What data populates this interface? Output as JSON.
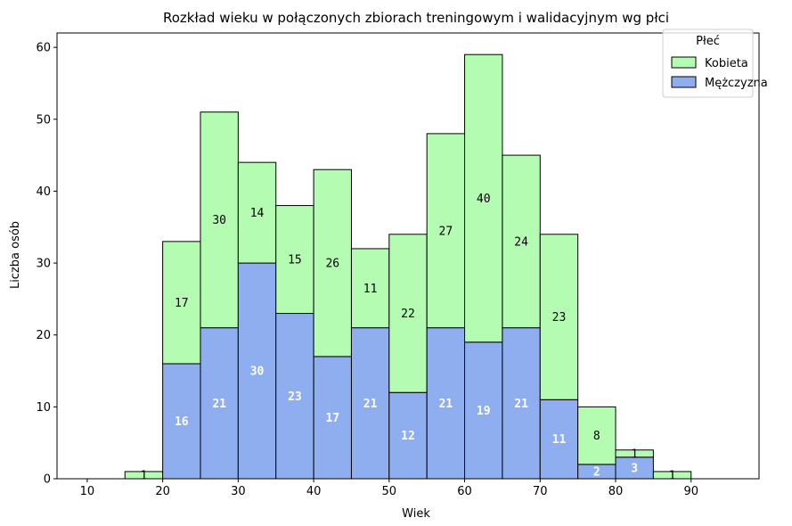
{
  "chart_data": {
    "type": "bar",
    "stacked": true,
    "title": "Rozkład wieku w połączonych zbiorach treningowym i walidacyjnym wg płci",
    "xlabel": "Wiek",
    "ylabel": "Liczba osób",
    "xlim": [
      6,
      99
    ],
    "ylim": [
      0,
      62
    ],
    "xticks": [
      10,
      20,
      30,
      40,
      50,
      60,
      70,
      80,
      90
    ],
    "yticks": [
      0,
      10,
      20,
      30,
      40,
      50,
      60
    ],
    "bin_edges": [
      10,
      15,
      20,
      25,
      30,
      35,
      40,
      45,
      50,
      55,
      60,
      65,
      70,
      75,
      80,
      85,
      90,
      95
    ],
    "series": [
      {
        "name": "Mężczyzna",
        "color": "#8eaef0",
        "values": [
          0,
          0,
          16,
          21,
          30,
          23,
          17,
          21,
          12,
          21,
          19,
          21,
          11,
          2,
          3,
          0,
          0
        ],
        "labels": [
          "",
          "",
          "16",
          "21",
          "30",
          "23",
          "17",
          "21",
          "12",
          "21",
          "19",
          "21",
          "11",
          "2",
          "3",
          "",
          ""
        ]
      },
      {
        "name": "Kobieta",
        "color": "#b3fcb1",
        "values": [
          0,
          1,
          17,
          30,
          14,
          15,
          26,
          11,
          22,
          27,
          40,
          24,
          23,
          8,
          1,
          1,
          0
        ],
        "labels": [
          "",
          "1",
          "17",
          "30",
          "14",
          "15",
          "26",
          "11",
          "22",
          "27",
          "40",
          "24",
          "23",
          "8",
          "1",
          "1",
          ""
        ]
      }
    ],
    "legend": {
      "title": "Płeć",
      "position": "top-right",
      "entries": [
        "Kobieta",
        "Mężczyzna"
      ]
    }
  }
}
